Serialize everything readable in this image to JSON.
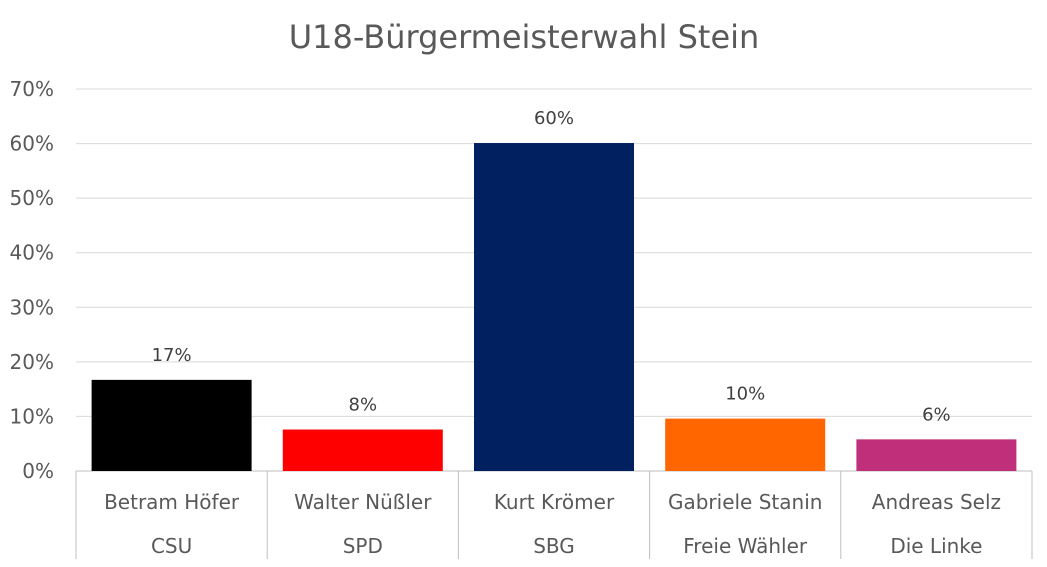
{
  "chart_data": {
    "type": "bar",
    "title": "U18-Bürgermeisterwahl Stein",
    "xlabel": "",
    "ylabel": "",
    "ylim": [
      0,
      70
    ],
    "yticks": [
      "0%",
      "10%",
      "20%",
      "30%",
      "40%",
      "50%",
      "60%",
      "70%"
    ],
    "grid": true,
    "legend": "none",
    "categories": [
      [
        "Betram Höfer",
        "CSU"
      ],
      [
        "Walter Nüßler",
        "SPD"
      ],
      [
        "Kurt Krömer",
        "SBG"
      ],
      [
        "Gabriele Stanin",
        "Freie Wähler"
      ],
      [
        "Andreas Selz",
        "Die Linke"
      ]
    ],
    "values": [
      16.7,
      7.6,
      60.1,
      9.6,
      5.8
    ],
    "data_labels": [
      "17%",
      "8%",
      "60%",
      "10%",
      "6%"
    ],
    "colors": [
      "#000000",
      "#ff0000",
      "#002060",
      "#ff6600",
      "#c0307a"
    ]
  }
}
